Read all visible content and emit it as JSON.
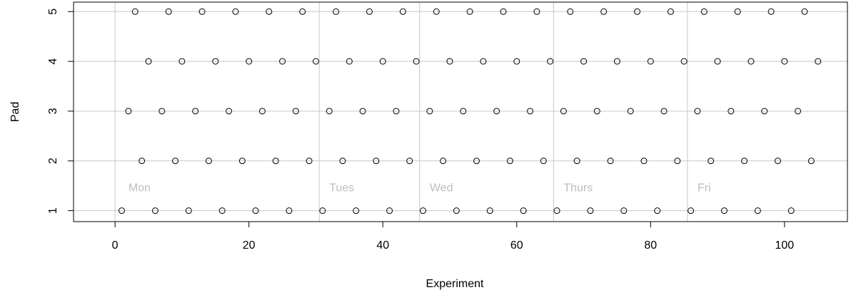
{
  "chart_data": {
    "type": "scatter",
    "xlabel": "Experiment",
    "ylabel": "Pad",
    "xlim": [
      -6.2,
      109.4
    ],
    "ylim": [
      0.78,
      5.19
    ],
    "xticks": [
      0,
      20,
      40,
      60,
      80,
      100
    ],
    "xtick_labels": [
      "0",
      "20",
      "40",
      "60",
      "80",
      "100"
    ],
    "yticks": [
      1,
      2,
      3,
      4,
      5
    ],
    "ytick_labels": [
      "1",
      "2",
      "3",
      "4",
      "5"
    ],
    "grid": true,
    "colors": {
      "gridline": "#c8c8c8",
      "points": "#000000",
      "day_labels": "#bdbdbd"
    },
    "day_separators": [
      30.5,
      45.5,
      65.5,
      85.5
    ],
    "day_labels": [
      {
        "text": "Mon",
        "x": 2
      },
      {
        "text": "Tues",
        "x": 32
      },
      {
        "text": "Wed",
        "x": 47
      },
      {
        "text": "Thurs",
        "x": 67
      },
      {
        "text": "Fri",
        "x": 87
      }
    ],
    "day_label_y": 1.45,
    "points": [
      [
        1,
        1
      ],
      [
        2,
        3
      ],
      [
        3,
        5
      ],
      [
        4,
        2
      ],
      [
        5,
        4
      ],
      [
        6,
        1
      ],
      [
        7,
        3
      ],
      [
        8,
        5
      ],
      [
        9,
        2
      ],
      [
        10,
        4
      ],
      [
        11,
        1
      ],
      [
        12,
        3
      ],
      [
        13,
        5
      ],
      [
        14,
        2
      ],
      [
        15,
        4
      ],
      [
        16,
        1
      ],
      [
        17,
        3
      ],
      [
        18,
        5
      ],
      [
        19,
        2
      ],
      [
        20,
        4
      ],
      [
        21,
        1
      ],
      [
        22,
        3
      ],
      [
        23,
        5
      ],
      [
        24,
        2
      ],
      [
        25,
        4
      ],
      [
        26,
        1
      ],
      [
        27,
        3
      ],
      [
        28,
        5
      ],
      [
        29,
        2
      ],
      [
        30,
        4
      ],
      [
        31,
        1
      ],
      [
        32,
        3
      ],
      [
        33,
        5
      ],
      [
        34,
        2
      ],
      [
        35,
        4
      ],
      [
        36,
        1
      ],
      [
        37,
        3
      ],
      [
        38,
        5
      ],
      [
        39,
        2
      ],
      [
        40,
        4
      ],
      [
        41,
        1
      ],
      [
        42,
        3
      ],
      [
        43,
        5
      ],
      [
        44,
        2
      ],
      [
        45,
        4
      ],
      [
        46,
        1
      ],
      [
        47,
        3
      ],
      [
        48,
        5
      ],
      [
        49,
        2
      ],
      [
        50,
        4
      ],
      [
        51,
        1
      ],
      [
        52,
        3
      ],
      [
        53,
        5
      ],
      [
        54,
        2
      ],
      [
        55,
        4
      ],
      [
        56,
        1
      ],
      [
        57,
        3
      ],
      [
        58,
        5
      ],
      [
        59,
        2
      ],
      [
        60,
        4
      ],
      [
        61,
        1
      ],
      [
        62,
        3
      ],
      [
        63,
        5
      ],
      [
        64,
        2
      ],
      [
        65,
        4
      ],
      [
        66,
        1
      ],
      [
        67,
        3
      ],
      [
        68,
        5
      ],
      [
        69,
        2
      ],
      [
        70,
        4
      ],
      [
        71,
        1
      ],
      [
        72,
        3
      ],
      [
        73,
        5
      ],
      [
        74,
        2
      ],
      [
        75,
        4
      ],
      [
        76,
        1
      ],
      [
        77,
        3
      ],
      [
        78,
        5
      ],
      [
        79,
        2
      ],
      [
        80,
        4
      ],
      [
        81,
        1
      ],
      [
        82,
        3
      ],
      [
        83,
        5
      ],
      [
        84,
        2
      ],
      [
        85,
        4
      ],
      [
        86,
        1
      ],
      [
        87,
        3
      ],
      [
        88,
        5
      ],
      [
        89,
        2
      ],
      [
        90,
        4
      ],
      [
        91,
        1
      ],
      [
        92,
        3
      ],
      [
        93,
        5
      ],
      [
        94,
        2
      ],
      [
        95,
        4
      ],
      [
        96,
        1
      ],
      [
        97,
        3
      ],
      [
        98,
        5
      ],
      [
        99,
        2
      ],
      [
        100,
        4
      ],
      [
        101,
        1
      ],
      [
        102,
        3
      ],
      [
        103,
        5
      ],
      [
        104,
        2
      ],
      [
        105,
        4
      ]
    ]
  }
}
